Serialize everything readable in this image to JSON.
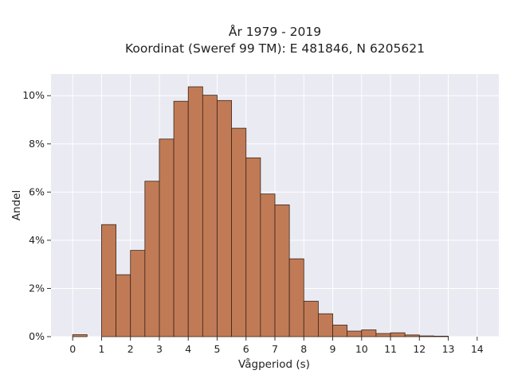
{
  "chart_data": {
    "type": "bar",
    "title": [
      "År 1979 - 2019",
      "Koordinat (Sweref 99 TM): E 481846, N 6205621"
    ],
    "xlabel": "Vågperiod (s)",
    "ylabel": "Andel",
    "xlim": [
      -0.75,
      14.75
    ],
    "ylim": [
      0,
      10.9
    ],
    "xticks": [
      0,
      1,
      2,
      3,
      4,
      5,
      6,
      7,
      8,
      9,
      10,
      11,
      12,
      13,
      14
    ],
    "yticks": [
      0,
      2,
      4,
      6,
      8,
      10
    ],
    "ytick_labels": [
      "0%",
      "2%",
      "4%",
      "6%",
      "8%",
      "10%"
    ],
    "bin_width": 0.5,
    "bin_starts": [
      0,
      0.5,
      1,
      1.5,
      2,
      2.5,
      3,
      3.5,
      4,
      4.5,
      5,
      5.5,
      6,
      6.5,
      7,
      7.5,
      8,
      8.5,
      9,
      9.5,
      10,
      10.5,
      11,
      11.5,
      12,
      12.5,
      13,
      13.5
    ],
    "values": [
      0.08,
      0.0,
      4.65,
      2.57,
      3.58,
      6.45,
      8.2,
      9.77,
      10.37,
      10.02,
      9.8,
      8.65,
      7.42,
      5.92,
      5.47,
      3.23,
      1.47,
      0.95,
      0.48,
      0.23,
      0.28,
      0.13,
      0.16,
      0.07,
      0.03,
      0.02,
      0.0,
      0.0
    ],
    "grid": true,
    "bar_color": "#c07b56",
    "bar_edge_color": "#3b2418",
    "plot_background": "#eaeaf2",
    "grid_color": "#ffffff"
  }
}
